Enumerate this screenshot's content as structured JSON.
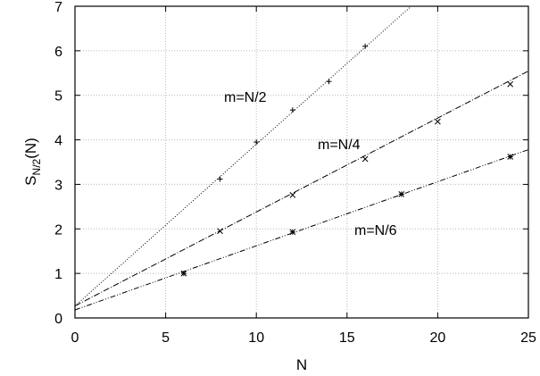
{
  "chart_data": {
    "type": "scatter",
    "xlabel": "N",
    "ylabel": "S",
    "ylabel_sub": "N/2",
    "ylabel_suffix": "(N)",
    "xlim": [
      0,
      25
    ],
    "ylim": [
      0,
      7
    ],
    "xticks": [
      0,
      5,
      10,
      15,
      20,
      25
    ],
    "yticks": [
      0,
      1,
      2,
      3,
      4,
      5,
      6,
      7
    ],
    "grid": true,
    "series": [
      {
        "name": "m=N/2",
        "marker": "plus",
        "x": [
          8,
          10,
          12,
          14,
          16
        ],
        "y": [
          3.12,
          3.95,
          4.67,
          5.31,
          6.1
        ],
        "fit": {
          "intercept": 0.27,
          "slope": 0.363,
          "dash": "1 2"
        }
      },
      {
        "name": "m=N/4",
        "marker": "cross",
        "x": [
          8,
          12,
          16,
          20,
          24
        ],
        "y": [
          1.95,
          2.76,
          3.57,
          4.41,
          5.25
        ],
        "fit": {
          "intercept": 0.27,
          "slope": 0.211,
          "dash": "7 2 1 2"
        }
      },
      {
        "name": "m=N/6",
        "marker": "star",
        "x": [
          6,
          12,
          18,
          24
        ],
        "y": [
          1.0,
          1.93,
          2.78,
          3.62
        ],
        "fit": {
          "intercept": 0.18,
          "slope": 0.144,
          "dash": "6 2 1 2 1 2"
        }
      }
    ],
    "annotations": [
      "m=N/2",
      "m=N/4",
      "m=N/6"
    ]
  }
}
